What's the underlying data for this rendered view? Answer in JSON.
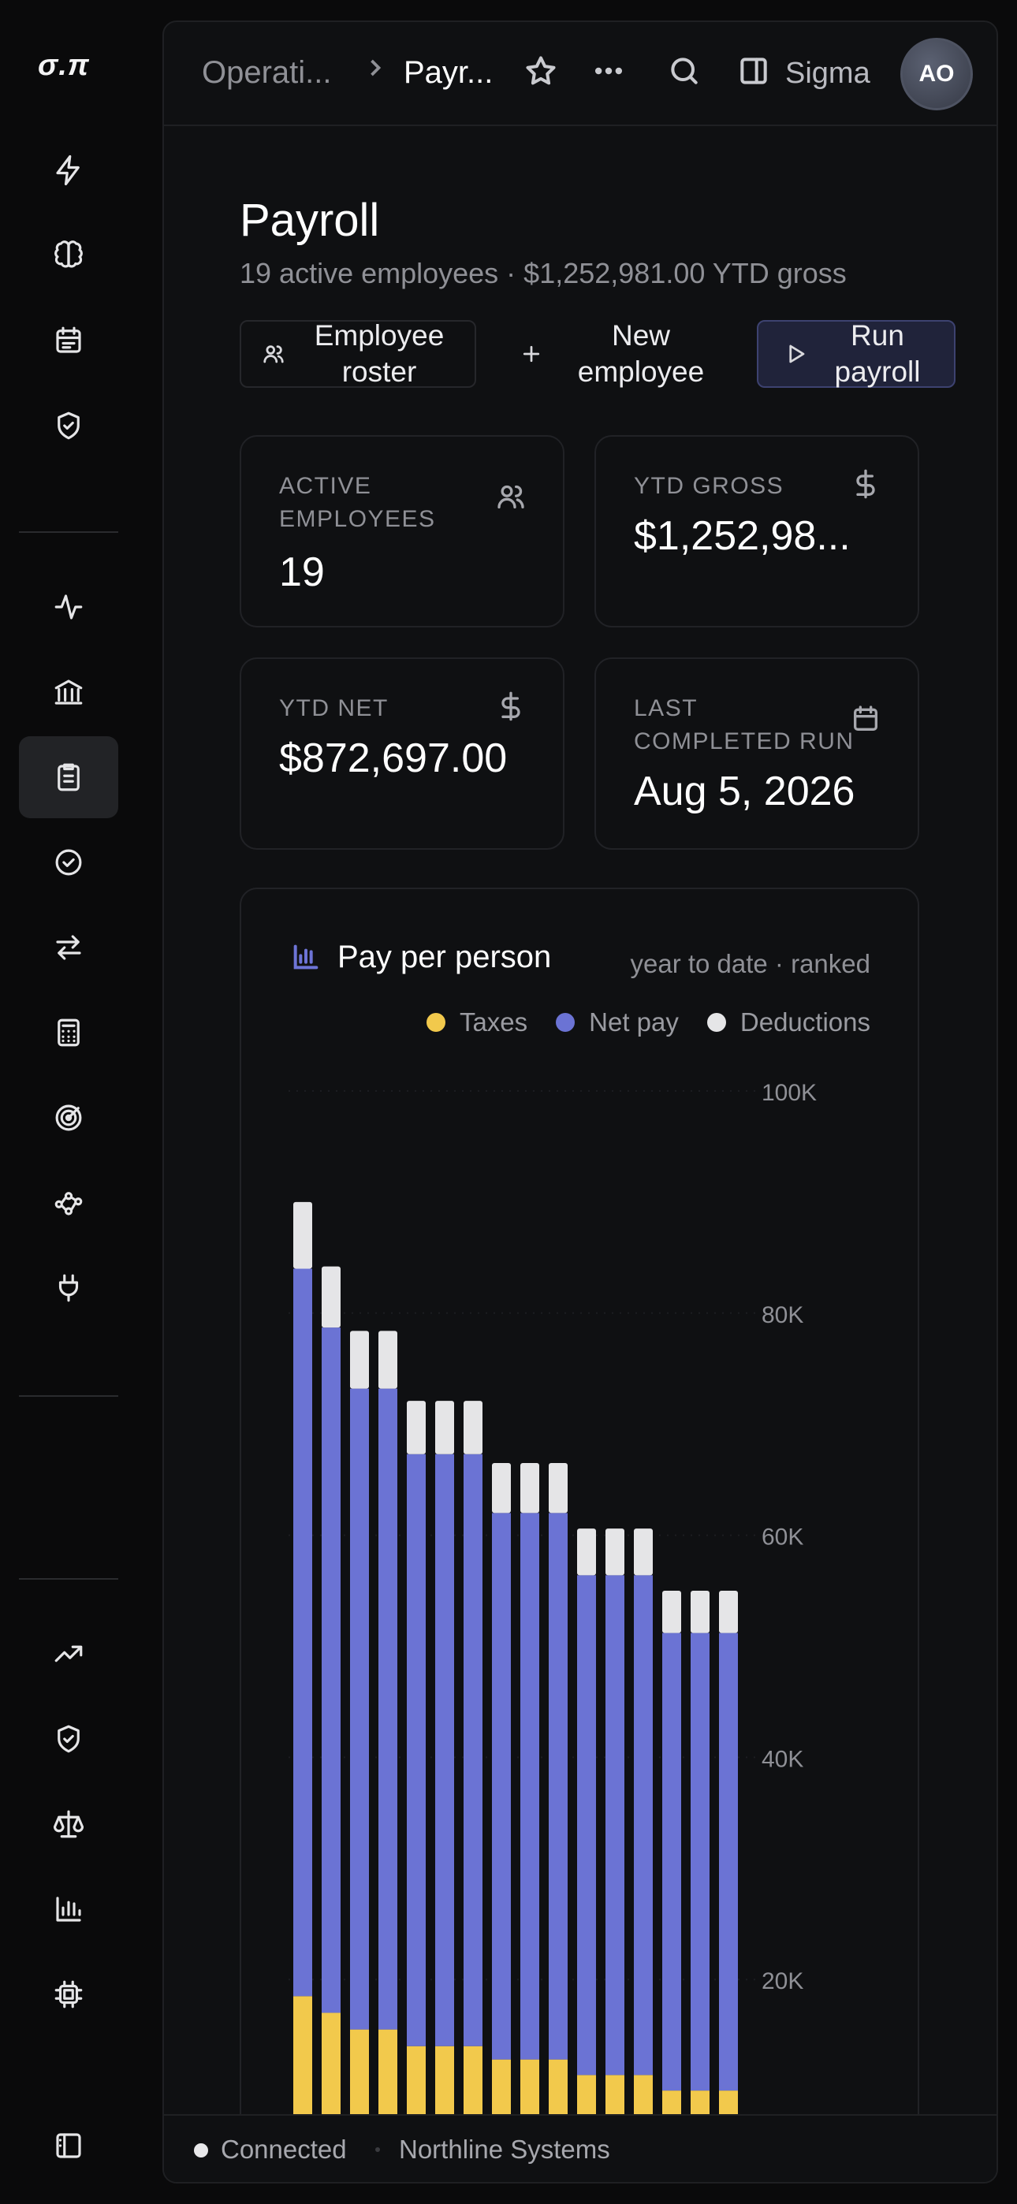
{
  "app": {
    "logo": "σ.π"
  },
  "breadcrumb": {
    "parent": "Operati...",
    "current": "Payr..."
  },
  "topbar": {
    "workspace_label": "Sigma",
    "avatar_initials": "AO"
  },
  "page": {
    "title": "Payroll",
    "subtitle": "19 active employees · $1,252,981.00 YTD gross"
  },
  "actions": {
    "roster": "Employee roster",
    "new": "New employee",
    "run": "Run payroll"
  },
  "stats": {
    "active_label": "ACTIVE EMPLOYEES",
    "active_value": "19",
    "gross_label": "YTD GROSS",
    "gross_value": "$1,252,98...",
    "net_label": "YTD NET",
    "net_value": "$872,697.00",
    "last_label": "LAST COMPLETED RUN",
    "last_value": "Aug 5, 2026"
  },
  "chart": {
    "title": "Pay per person",
    "meta": "year to date · ranked"
  },
  "chart_data": {
    "type": "bar",
    "stacked": true,
    "series": [
      {
        "name": "Taxes",
        "color": "#f2c94c",
        "values": [
          18500,
          17000,
          15500,
          15500,
          14000,
          14000,
          14000,
          12800,
          12800,
          12800,
          11400,
          11400,
          11400,
          10000,
          10000,
          10000
        ]
      },
      {
        "name": "Net pay",
        "color": "#6b73d4",
        "values": [
          65500,
          61700,
          57700,
          57700,
          53300,
          53300,
          53300,
          49200,
          49200,
          49200,
          45000,
          45000,
          45000,
          41200,
          41200,
          41200
        ]
      },
      {
        "name": "Deductions",
        "color": "#e5e5e7",
        "values": [
          6000,
          5500,
          5200,
          5200,
          4800,
          4800,
          4800,
          4500,
          4500,
          4500,
          4200,
          4200,
          4200,
          3800,
          3800,
          3800
        ]
      }
    ],
    "yticks": [
      "20K",
      "40K",
      "60K",
      "80K",
      "100K"
    ],
    "ytick_values": [
      20000,
      40000,
      60000,
      80000,
      100000
    ],
    "ylim": [
      0,
      100000
    ]
  },
  "status": {
    "connection": "Connected",
    "org": "Northline Systems"
  },
  "colors": {
    "accent": "#6b73d4",
    "taxes": "#f2c94c",
    "deductions": "#e5e5e7"
  }
}
